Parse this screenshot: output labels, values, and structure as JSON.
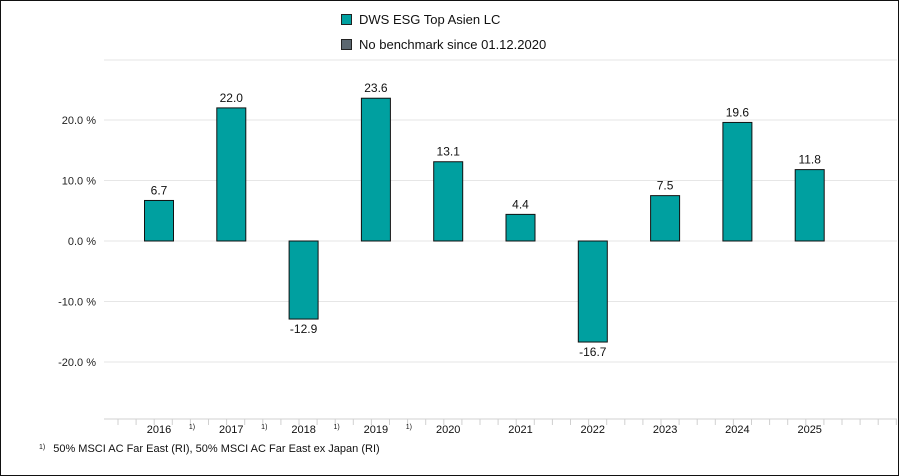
{
  "chart_data": {
    "type": "bar",
    "categories": [
      "2016",
      "2017",
      "2018",
      "2019",
      "2020",
      "2021",
      "2022",
      "2023",
      "2024",
      "2025"
    ],
    "category_footnote_marks": [
      "1)",
      "1)",
      "1)",
      "1)",
      "",
      "",
      "",
      "",
      "",
      ""
    ],
    "series": [
      {
        "name": "DWS ESG Top Asien LC",
        "values": [
          6.7,
          22.0,
          -12.9,
          23.6,
          13.1,
          4.4,
          -16.7,
          7.5,
          19.6,
          11.8
        ],
        "color": "#00a0a0"
      }
    ],
    "legend": [
      {
        "label": "DWS ESG Top Asien LC",
        "color": "#00a0a0"
      },
      {
        "label": "No benchmark since 01.12.2020",
        "color": "#5b6770"
      }
    ],
    "legend_position": "top-center",
    "y_ticks": [
      20,
      10,
      0,
      -10,
      -20
    ],
    "y_tick_labels": [
      "20.0 %",
      "10.0 %",
      "0.0 %",
      "-10.0 %",
      "-20.0 %"
    ],
    "ylim": [
      -30,
      30
    ],
    "grid": true,
    "data_labels": [
      "6.7",
      "22.0",
      "-12.9",
      "23.6",
      "13.1",
      "4.4",
      "-16.7",
      "7.5",
      "19.6",
      "11.8"
    ]
  },
  "footnote": {
    "mark": "1)",
    "text": "50% MSCI AC Far East (RI), 50% MSCI AC Far East ex Japan (RI)"
  }
}
